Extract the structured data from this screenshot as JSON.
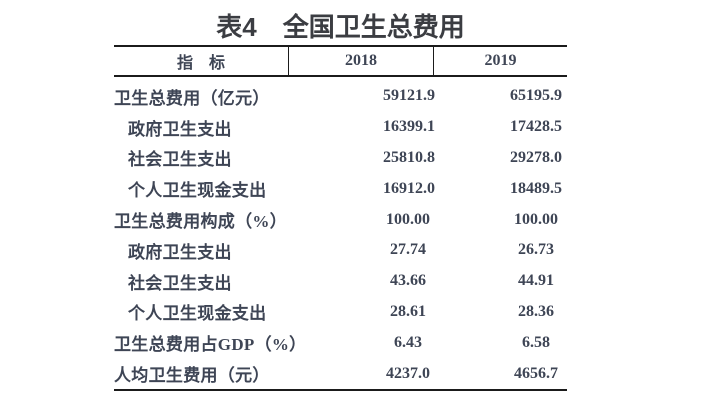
{
  "title": "表4　全国卫生总费用",
  "table": {
    "headers": [
      "指　标",
      "2018",
      "2019"
    ],
    "rows": [
      {
        "label": "卫生总费用（亿元）",
        "indent": false,
        "y2018": "59121.9",
        "y2019": "65195.9"
      },
      {
        "label": "政府卫生支出",
        "indent": true,
        "y2018": "16399.1",
        "y2019": "17428.5"
      },
      {
        "label": "社会卫生支出",
        "indent": true,
        "y2018": "25810.8",
        "y2019": "29278.0"
      },
      {
        "label": "个人卫生现金支出",
        "indent": true,
        "y2018": "16912.0",
        "y2019": "18489.5"
      },
      {
        "label": "卫生总费用构成（%）",
        "indent": false,
        "y2018": "100.00",
        "y2019": "100.00"
      },
      {
        "label": "政府卫生支出",
        "indent": true,
        "y2018": "27.74",
        "y2019": "26.73"
      },
      {
        "label": "社会卫生支出",
        "indent": true,
        "y2018": "43.66",
        "y2019": "44.91"
      },
      {
        "label": "个人卫生现金支出",
        "indent": true,
        "y2018": "28.61",
        "y2019": "28.36"
      },
      {
        "label": "卫生总费用占GDP（%）",
        "indent": false,
        "y2018": "6.43",
        "y2019": "6.58"
      },
      {
        "label": "人均卫生费用（元）",
        "indent": false,
        "y2018": "4237.0",
        "y2019": "4656.7"
      }
    ]
  },
  "colors": {
    "title_text": "#3b3d42",
    "body_text": "#3e4555",
    "border": "#1b1b1b",
    "background": "#ffffff"
  },
  "chart_data": {
    "type": "table",
    "title": "表4 全国卫生总费用",
    "columns": [
      "指标",
      "2018",
      "2019"
    ],
    "rows": [
      [
        "卫生总费用（亿元）",
        59121.9,
        65195.9
      ],
      [
        "政府卫生支出",
        16399.1,
        17428.5
      ],
      [
        "社会卫生支出",
        25810.8,
        29278.0
      ],
      [
        "个人卫生现金支出",
        16912.0,
        18489.5
      ],
      [
        "卫生总费用构成（%）",
        100.0,
        100.0
      ],
      [
        "政府卫生支出",
        27.74,
        26.73
      ],
      [
        "社会卫生支出",
        43.66,
        44.91
      ],
      [
        "个人卫生现金支出",
        28.61,
        28.36
      ],
      [
        "卫生总费用占GDP（%）",
        6.43,
        6.58
      ],
      [
        "人均卫生费用（元）",
        4237.0,
        4656.7
      ]
    ]
  }
}
